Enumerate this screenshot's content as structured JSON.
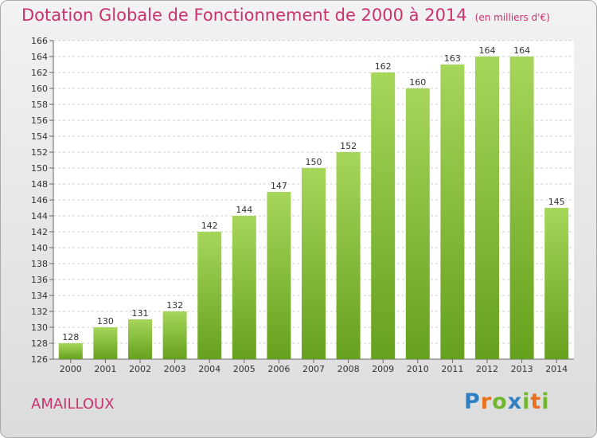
{
  "header": {
    "title": "Dotation Globale de Fonctionnement de 2000 à 2014",
    "unit": "(en milliers d'€)"
  },
  "commune": "AMAILLOUX",
  "logo": {
    "text": "Proxiti"
  },
  "colors": {
    "bar_top": "#a6d65a",
    "bar_bottom": "#66a11d",
    "title": "#c8326e"
  },
  "chart_data": {
    "type": "bar",
    "title": "Dotation Globale de Fonctionnement de 2000 à 2014",
    "subtitle": "(en milliers d'€)",
    "xlabel": "",
    "ylabel": "",
    "categories": [
      "2000",
      "2001",
      "2002",
      "2003",
      "2004",
      "2005",
      "2006",
      "2007",
      "2008",
      "2009",
      "2010",
      "2011",
      "2012",
      "2013",
      "2014"
    ],
    "values": [
      128,
      130,
      131,
      132,
      142,
      144,
      147,
      150,
      152,
      162,
      160,
      163,
      164,
      164,
      145
    ],
    "ylim": [
      126,
      166
    ],
    "yticks": [
      126,
      128,
      130,
      132,
      134,
      136,
      138,
      140,
      142,
      144,
      146,
      148,
      150,
      152,
      154,
      156,
      158,
      160,
      162,
      164,
      166
    ],
    "grid": true,
    "legend": "none"
  }
}
